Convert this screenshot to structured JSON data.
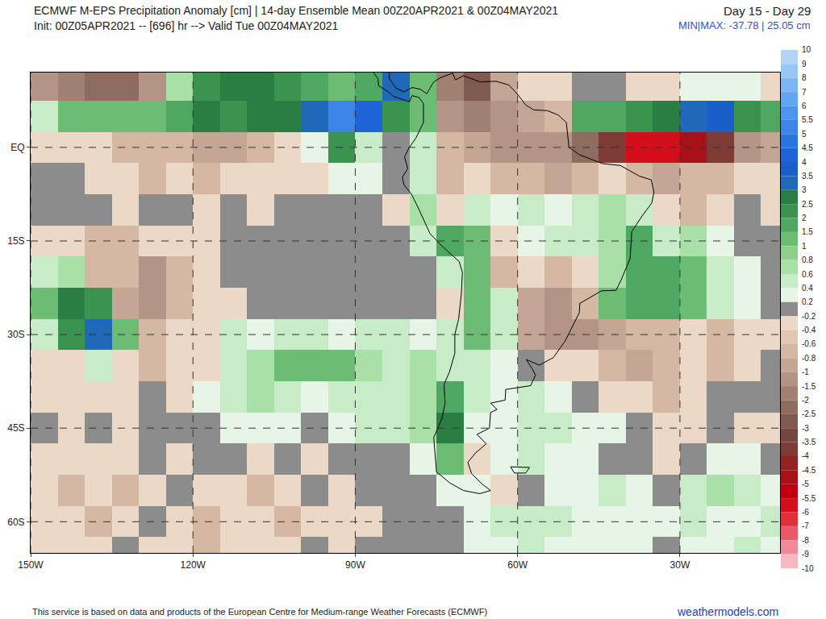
{
  "chart_data": {
    "type": "heatmap",
    "title": "ECMWF M-EPS Precipitation Anomaly [cm] | 14-day Ensemble Mean 00Z20APR2021 & 00Z04MAY2021",
    "subtitle": "Init: 00Z05APR2021 -- [696] hr --> Valid Tue 00Z04MAY2021",
    "period": "Day 15 - Day 29",
    "min_max": "MIN|MAX: -37.78 | 25.05 cm",
    "credit": "This service is based on data and products of the European Centre for Medium-range Weather Forecasts (ECMWF)",
    "source": "weathermodels.com",
    "xlim": [
      -150,
      -11.5
    ],
    "ylim": [
      -65,
      12
    ],
    "xticks": [
      {
        "value": -150,
        "label": "150W"
      },
      {
        "value": -120,
        "label": "120W"
      },
      {
        "value": -90,
        "label": "90W"
      },
      {
        "value": -60,
        "label": "60W"
      },
      {
        "value": -30,
        "label": "30W"
      }
    ],
    "yticks": [
      {
        "value": 0,
        "label": "EQ"
      },
      {
        "value": -15,
        "label": "15S"
      },
      {
        "value": -30,
        "label": "30S"
      },
      {
        "value": -45,
        "label": "45S"
      },
      {
        "value": -60,
        "label": "60S"
      }
    ],
    "grid": true,
    "color_levels": [
      -10,
      -9,
      -8,
      -7,
      -6,
      -5.5,
      -5,
      -4.5,
      -4,
      -3.5,
      -3,
      -2.5,
      -2,
      -1.5,
      -1,
      -0.8,
      -0.6,
      -0.4,
      -0.2,
      0.2,
      0.4,
      0.6,
      0.8,
      1,
      1.5,
      2,
      2.5,
      3,
      3.5,
      4,
      4.5,
      5,
      5.5,
      6,
      7,
      8,
      9,
      10
    ],
    "colors": [
      "#f6b7c0",
      "#f08a98",
      "#e85a6a",
      "#e0303c",
      "#d40e1a",
      "#c00010",
      "#a8101a",
      "#902424",
      "#7e3a34",
      "#74463e",
      "#7f5a50",
      "#8e6c60",
      "#a08070",
      "#b49484",
      "#c4a694",
      "#d4b8a4",
      "#e0c8b4",
      "#ecd8c6",
      "#8c8c8c",
      "#e6f5e6",
      "#c8ecc8",
      "#a8e0a8",
      "#8cd08c",
      "#6cbc74",
      "#4ea862",
      "#3a9450",
      "#2a7e44",
      "#2068b8",
      "#1a5ec8",
      "#1e64d8",
      "#2a74e0",
      "#3c84e8",
      "#4c94ee",
      "#62a6f2",
      "#7cb6f4",
      "#98c6f6",
      "#b4d4f8"
    ],
    "x": [
      -147.5,
      -142.5,
      -137.5,
      -132.5,
      -127.5,
      -122.5,
      -117.5,
      -112.5,
      -107.5,
      -102.5,
      -97.5,
      -92.5,
      -87.5,
      -82.5,
      -77.5,
      -72.5,
      -67.5,
      -62.5,
      -57.5,
      -52.5,
      -47.5,
      -42.5,
      -37.5,
      -32.5,
      -27.5,
      -22.5,
      -17.5,
      -12.5
    ],
    "y": [
      10,
      5,
      0,
      -5,
      -10,
      -15,
      -20,
      -25,
      -30,
      -35,
      -40,
      -45,
      -50,
      -55,
      -60,
      -65
    ],
    "z": [
      [
        -1.5,
        -2,
        -2.5,
        -2.5,
        -1.5,
        0.8,
        2,
        2.5,
        2.5,
        2,
        1.5,
        1,
        1.5,
        3,
        1,
        -2,
        -3,
        -1,
        -0.4,
        -0.4,
        0,
        0,
        -0.4,
        -0.4,
        0.4,
        0.4,
        0.2,
        -0.4
      ],
      [
        0.6,
        1,
        1.2,
        1,
        1,
        1.5,
        2.5,
        2,
        2.5,
        2.5,
        3,
        5,
        4,
        2,
        1,
        -1.5,
        -2,
        -1.5,
        -1,
        -0.8,
        1.5,
        1.5,
        2,
        2.5,
        3,
        3.5,
        2,
        1.5
      ],
      [
        -0.4,
        -0.4,
        -0.4,
        -0.6,
        -0.8,
        -0.8,
        -1,
        -1,
        -0.8,
        -0.4,
        0.4,
        2,
        0.6,
        0,
        0.6,
        -0.6,
        -1,
        -1.5,
        -1.5,
        -1.5,
        -2.5,
        -4,
        -6,
        -6,
        -5,
        -4,
        -1.5,
        -1
      ],
      [
        0,
        0,
        -0.4,
        -0.4,
        -0.6,
        -0.4,
        -0.6,
        -0.4,
        -0.4,
        -0.4,
        -0.4,
        0.4,
        0.4,
        0,
        0.6,
        -0.6,
        -0.4,
        -0.6,
        -0.8,
        -1,
        -0.6,
        -0.4,
        -0.8,
        -1,
        -0.8,
        -0.6,
        -0.4,
        -0.4
      ],
      [
        0,
        0,
        0,
        -0.4,
        0,
        0,
        -0.4,
        0,
        -0.4,
        0,
        0,
        0,
        0,
        -0.4,
        0.8,
        -0.4,
        0.6,
        0.4,
        0.6,
        0.4,
        0.6,
        0.8,
        0.6,
        -0.4,
        -0.6,
        -0.4,
        0,
        -0.4
      ],
      [
        -0.4,
        -0.4,
        -0.6,
        -0.6,
        -0.4,
        -0.4,
        -0.4,
        0,
        0,
        0,
        0,
        0,
        0,
        0,
        0.6,
        1.5,
        1,
        -0.4,
        0.4,
        0.6,
        0.6,
        0.8,
        1.5,
        0.6,
        0.8,
        0.4,
        0,
        0
      ],
      [
        0.6,
        0.8,
        -0.6,
        -0.8,
        -1.5,
        -0.8,
        -0.4,
        0,
        0,
        0,
        0,
        0,
        0,
        0,
        0,
        0.6,
        1,
        -0.6,
        -0.4,
        -0.8,
        -0.4,
        0.8,
        1.5,
        1.5,
        1,
        0.6,
        0.4,
        0
      ],
      [
        1,
        2.5,
        2,
        -1,
        -1.5,
        -0.6,
        -0.4,
        -0.4,
        0,
        0,
        0,
        0,
        0,
        0,
        0,
        -0.4,
        1,
        0.6,
        -1,
        -1.5,
        -0.8,
        1,
        1.5,
        1.5,
        1,
        0.6,
        0.4,
        0
      ],
      [
        0.6,
        2,
        3,
        1,
        -0.6,
        -0.4,
        -0.4,
        0.6,
        0.4,
        0.6,
        0.6,
        0.4,
        0.6,
        0.6,
        0.4,
        0.6,
        1,
        0.6,
        -1,
        -1.5,
        -1.5,
        -1,
        -0.8,
        -0.6,
        -0.4,
        -0.6,
        -0.4,
        -0.4
      ],
      [
        -0.4,
        -0.4,
        0.6,
        -0.4,
        -0.6,
        -0.4,
        -0.4,
        0.6,
        0.8,
        1,
        1,
        1,
        0.8,
        0.6,
        0.8,
        0.6,
        0.6,
        0.4,
        0,
        -0.4,
        -0.4,
        -0.8,
        -1,
        -0.6,
        -0.4,
        -0.6,
        -0.4,
        0
      ],
      [
        -0.4,
        -0.4,
        -0.4,
        -0.4,
        0,
        -0.4,
        0.4,
        0.6,
        0.8,
        0.6,
        0.4,
        0.6,
        0.6,
        0.6,
        0.8,
        1.5,
        0.6,
        0.4,
        0.6,
        0.4,
        0,
        -0.4,
        -0.4,
        -0.6,
        -0.4,
        0,
        0,
        0
      ],
      [
        0,
        -0.4,
        0,
        -0.4,
        0,
        0,
        0,
        0.4,
        0.4,
        0.4,
        0,
        0.4,
        0.6,
        0.6,
        0.8,
        2.5,
        0.4,
        0.4,
        0.6,
        0.6,
        0.4,
        0.4,
        0,
        -0.4,
        -0.4,
        0,
        -0.4,
        -0.4
      ],
      [
        -0.4,
        -0.4,
        -0.4,
        -0.4,
        0,
        -0.4,
        0,
        0,
        -0.4,
        0,
        -0.4,
        0,
        0,
        0,
        0.4,
        1,
        -0.4,
        0.4,
        0.6,
        0.4,
        0.4,
        0,
        0,
        -0.4,
        0,
        0.4,
        0.4,
        0
      ],
      [
        -0.4,
        -0.6,
        -0.4,
        -0.6,
        -0.4,
        0,
        -0.4,
        -0.4,
        -0.6,
        -0.4,
        0,
        -0.4,
        0,
        0,
        0,
        0.4,
        0.4,
        -0.4,
        0,
        0.4,
        0.4,
        0.6,
        0.4,
        0,
        0.6,
        0.8,
        0.6,
        0.4
      ],
      [
        -0.4,
        -0.4,
        -0.6,
        -0.4,
        0,
        -0.4,
        -0.6,
        -0.4,
        -0.4,
        -0.6,
        -0.4,
        -0.4,
        -0.4,
        0,
        0,
        0,
        0.4,
        0.6,
        0.6,
        0.6,
        0.4,
        0.4,
        0.4,
        0.4,
        0.6,
        0.4,
        0.4,
        0.6
      ],
      [
        -0.4,
        -0.4,
        -0.4,
        0,
        -0.4,
        -0.4,
        -0.6,
        -0.4,
        -0.4,
        -0.4,
        0,
        -0.4,
        0,
        0,
        0,
        0,
        0.4,
        0.4,
        0.6,
        0.4,
        0.4,
        0.4,
        0.4,
        0,
        0.4,
        0.4,
        0.6,
        0.4
      ]
    ],
    "coastline": {
      "lon": [
        -87.6,
        -85.8,
        -85.7,
        -84,
        -83,
        -81.5,
        -80,
        -79.5,
        -78.2,
        -77.4,
        -77.4,
        -78.8,
        -80,
        -80.9,
        -80.3,
        -81.3,
        -81,
        -79.6,
        -78.2,
        -76.2,
        -74,
        -70.8,
        -70.2,
        -70.4,
        -70.9,
        -71.6,
        -71.6,
        -72.6,
        -73.6,
        -73.4,
        -74,
        -75.5,
        -75.3,
        -75,
        -72.5,
        -70,
        -67,
        -65,
        -66.5,
        -68.5,
        -69.2,
        -67.8,
        -65.8,
        -67.5,
        -65.2,
        -65,
        -63.8,
        -65,
        -62.3,
        -62.2,
        -57.6,
        -56.7,
        -57.3,
        -58.4,
        -56,
        -53.4,
        -51.2,
        -48.6,
        -48.5,
        -44.5,
        -41.8,
        -40.9,
        -39.2,
        -38.9,
        -37,
        -35.2,
        -34.8,
        -35.3,
        -37.5,
        -41,
        -44.3,
        -48.5,
        -50.5,
        -51,
        -52.5,
        -54.5,
        -57,
        -58.5,
        -60,
        -61.6,
        -64,
        -67,
        -70,
        -71.5,
        -72,
        -74.2,
        -75.5,
        -76.8,
        -77.9,
        -79.5,
        -81,
        -82.5,
        -83.7,
        -83.7,
        -83.2,
        null,
        -61.3,
        -57.8,
        -58.5,
        -60.6,
        -61.3
      ],
      "lat": [
        13.2,
        11,
        9.9,
        9,
        8.2,
        7.7,
        7.3,
        8.3,
        8,
        7,
        4,
        1.5,
        0,
        -1.5,
        -3.4,
        -4.8,
        -6,
        -7.5,
        -10,
        -13.8,
        -15.8,
        -18.3,
        -20,
        -23.5,
        -27.5,
        -30,
        -33,
        -36,
        -38,
        -41,
        -43.5,
        -46.5,
        -49,
        -52,
        -53.8,
        -55,
        -55.5,
        -55,
        -54,
        -52.3,
        -50.5,
        -49,
        -47.5,
        -46,
        -45,
        -42.5,
        -42,
        -41,
        -40.5,
        -38.8,
        -38.2,
        -36.5,
        -35.5,
        -34,
        -34.9,
        -33.7,
        -31,
        -26.5,
        -25,
        -23,
        -22.9,
        -21.3,
        -17.8,
        -13.5,
        -11,
        -8.9,
        -7.2,
        -5.2,
        -4.6,
        -2.9,
        -2.6,
        -1.2,
        0,
        4,
        5.2,
        5.9,
        6,
        6.8,
        8.5,
        10,
        10.6,
        10.5,
        11.5,
        10.8,
        11.9,
        11.2,
        10.5,
        8.6,
        9.3,
        9.6,
        8.9,
        9.5,
        11,
        13,
        14.5,
        null,
        -51.2,
        -51.3,
        -52.2,
        -52.2,
        -51.2
      ]
    }
  }
}
